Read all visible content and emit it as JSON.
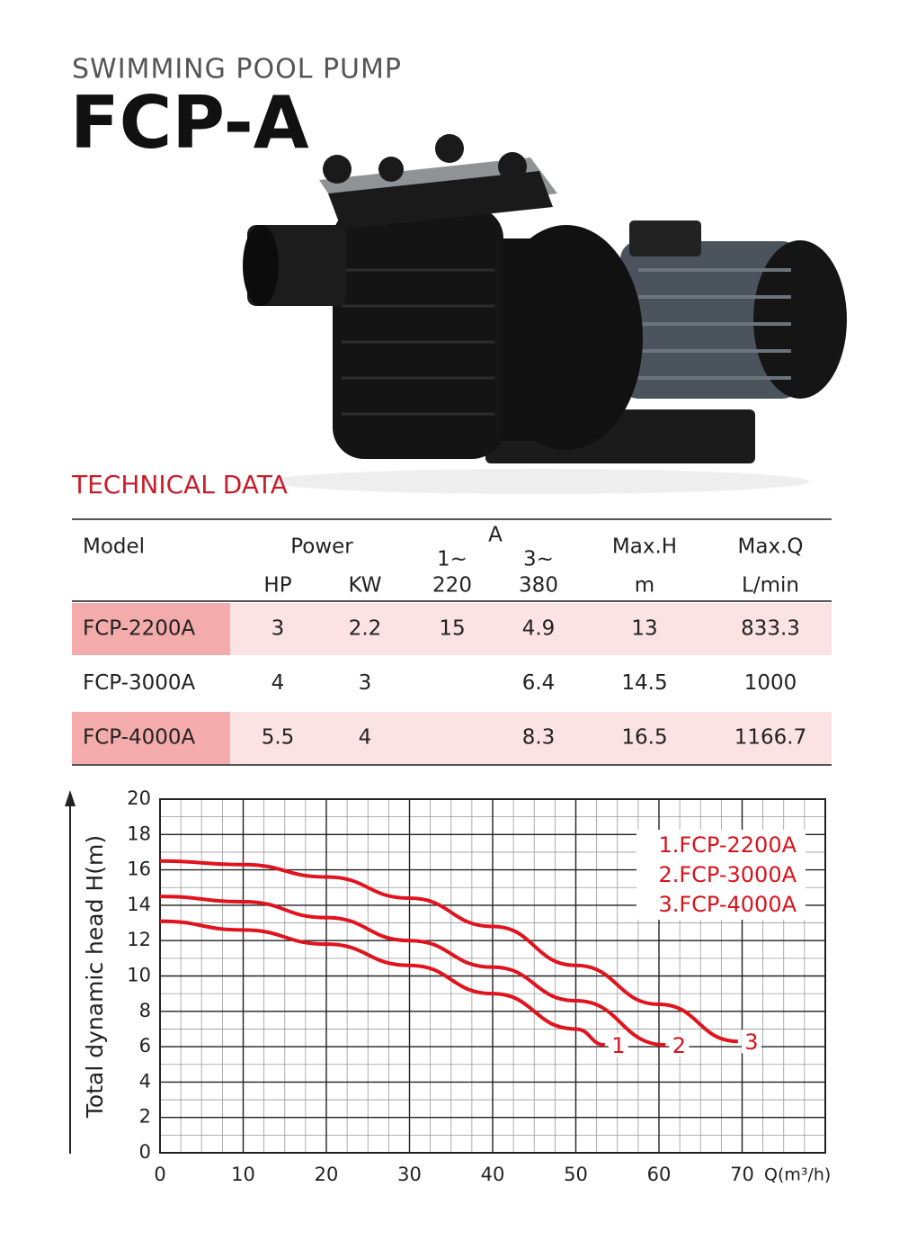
{
  "header": {
    "subtitle": "SWIMMING POOL PUMP",
    "title": "FCP-A"
  },
  "table": {
    "title": "TECHNICAL DATA",
    "header": {
      "model": "Model",
      "power": "Power",
      "current": "A",
      "single_phase": "1~",
      "three_phase": "3~",
      "max_h": "Max.H",
      "max_q": "Max.Q"
    },
    "units": [
      "HP",
      "KW",
      "220",
      "380",
      "m",
      "L/min"
    ],
    "rows": [
      [
        "FCP-2200A",
        3,
        2.2,
        15,
        4.9,
        13,
        833.3
      ],
      [
        "FCP-3000A",
        4,
        3,
        null,
        6.4,
        14.5,
        1000
      ],
      [
        "FCP-4000A",
        5.5,
        4,
        null,
        8.3,
        16.5,
        1166.7
      ]
    ]
  },
  "chart_data": {
    "type": "line",
    "y_label": "Total dynamic head H(m)",
    "x_label": "Q(m³/h)",
    "xlim": [
      0,
      80
    ],
    "ylim": [
      0,
      20
    ],
    "xticks": [
      0,
      10,
      20,
      30,
      40,
      50,
      60,
      70
    ],
    "yticks": [
      0,
      2,
      4,
      6,
      8,
      10,
      12,
      14,
      16,
      18,
      20
    ],
    "grid": true,
    "minor_grid_step": [
      2.5,
      1
    ],
    "series": [
      {
        "name": "1.FCP-2200A",
        "point_label": "1",
        "color": "#e0141e",
        "x": [
          0,
          10,
          20,
          30,
          40,
          50,
          53.5
        ],
        "values": [
          13.1,
          12.6,
          11.8,
          10.6,
          9.0,
          7.0,
          6.1
        ]
      },
      {
        "name": "2.FCP-3000A",
        "point_label": "2",
        "color": "#e0141e",
        "x": [
          0,
          10,
          20,
          30,
          40,
          50,
          60.8
        ],
        "values": [
          14.5,
          14.2,
          13.3,
          12.0,
          10.5,
          8.6,
          6.1
        ]
      },
      {
        "name": "3.FCP-4000A",
        "point_label": "3",
        "color": "#e0141e",
        "x": [
          0,
          10,
          20,
          30,
          40,
          50,
          60,
          69.5
        ],
        "values": [
          16.5,
          16.3,
          15.6,
          14.4,
          12.8,
          10.6,
          8.4,
          6.3
        ]
      }
    ]
  }
}
